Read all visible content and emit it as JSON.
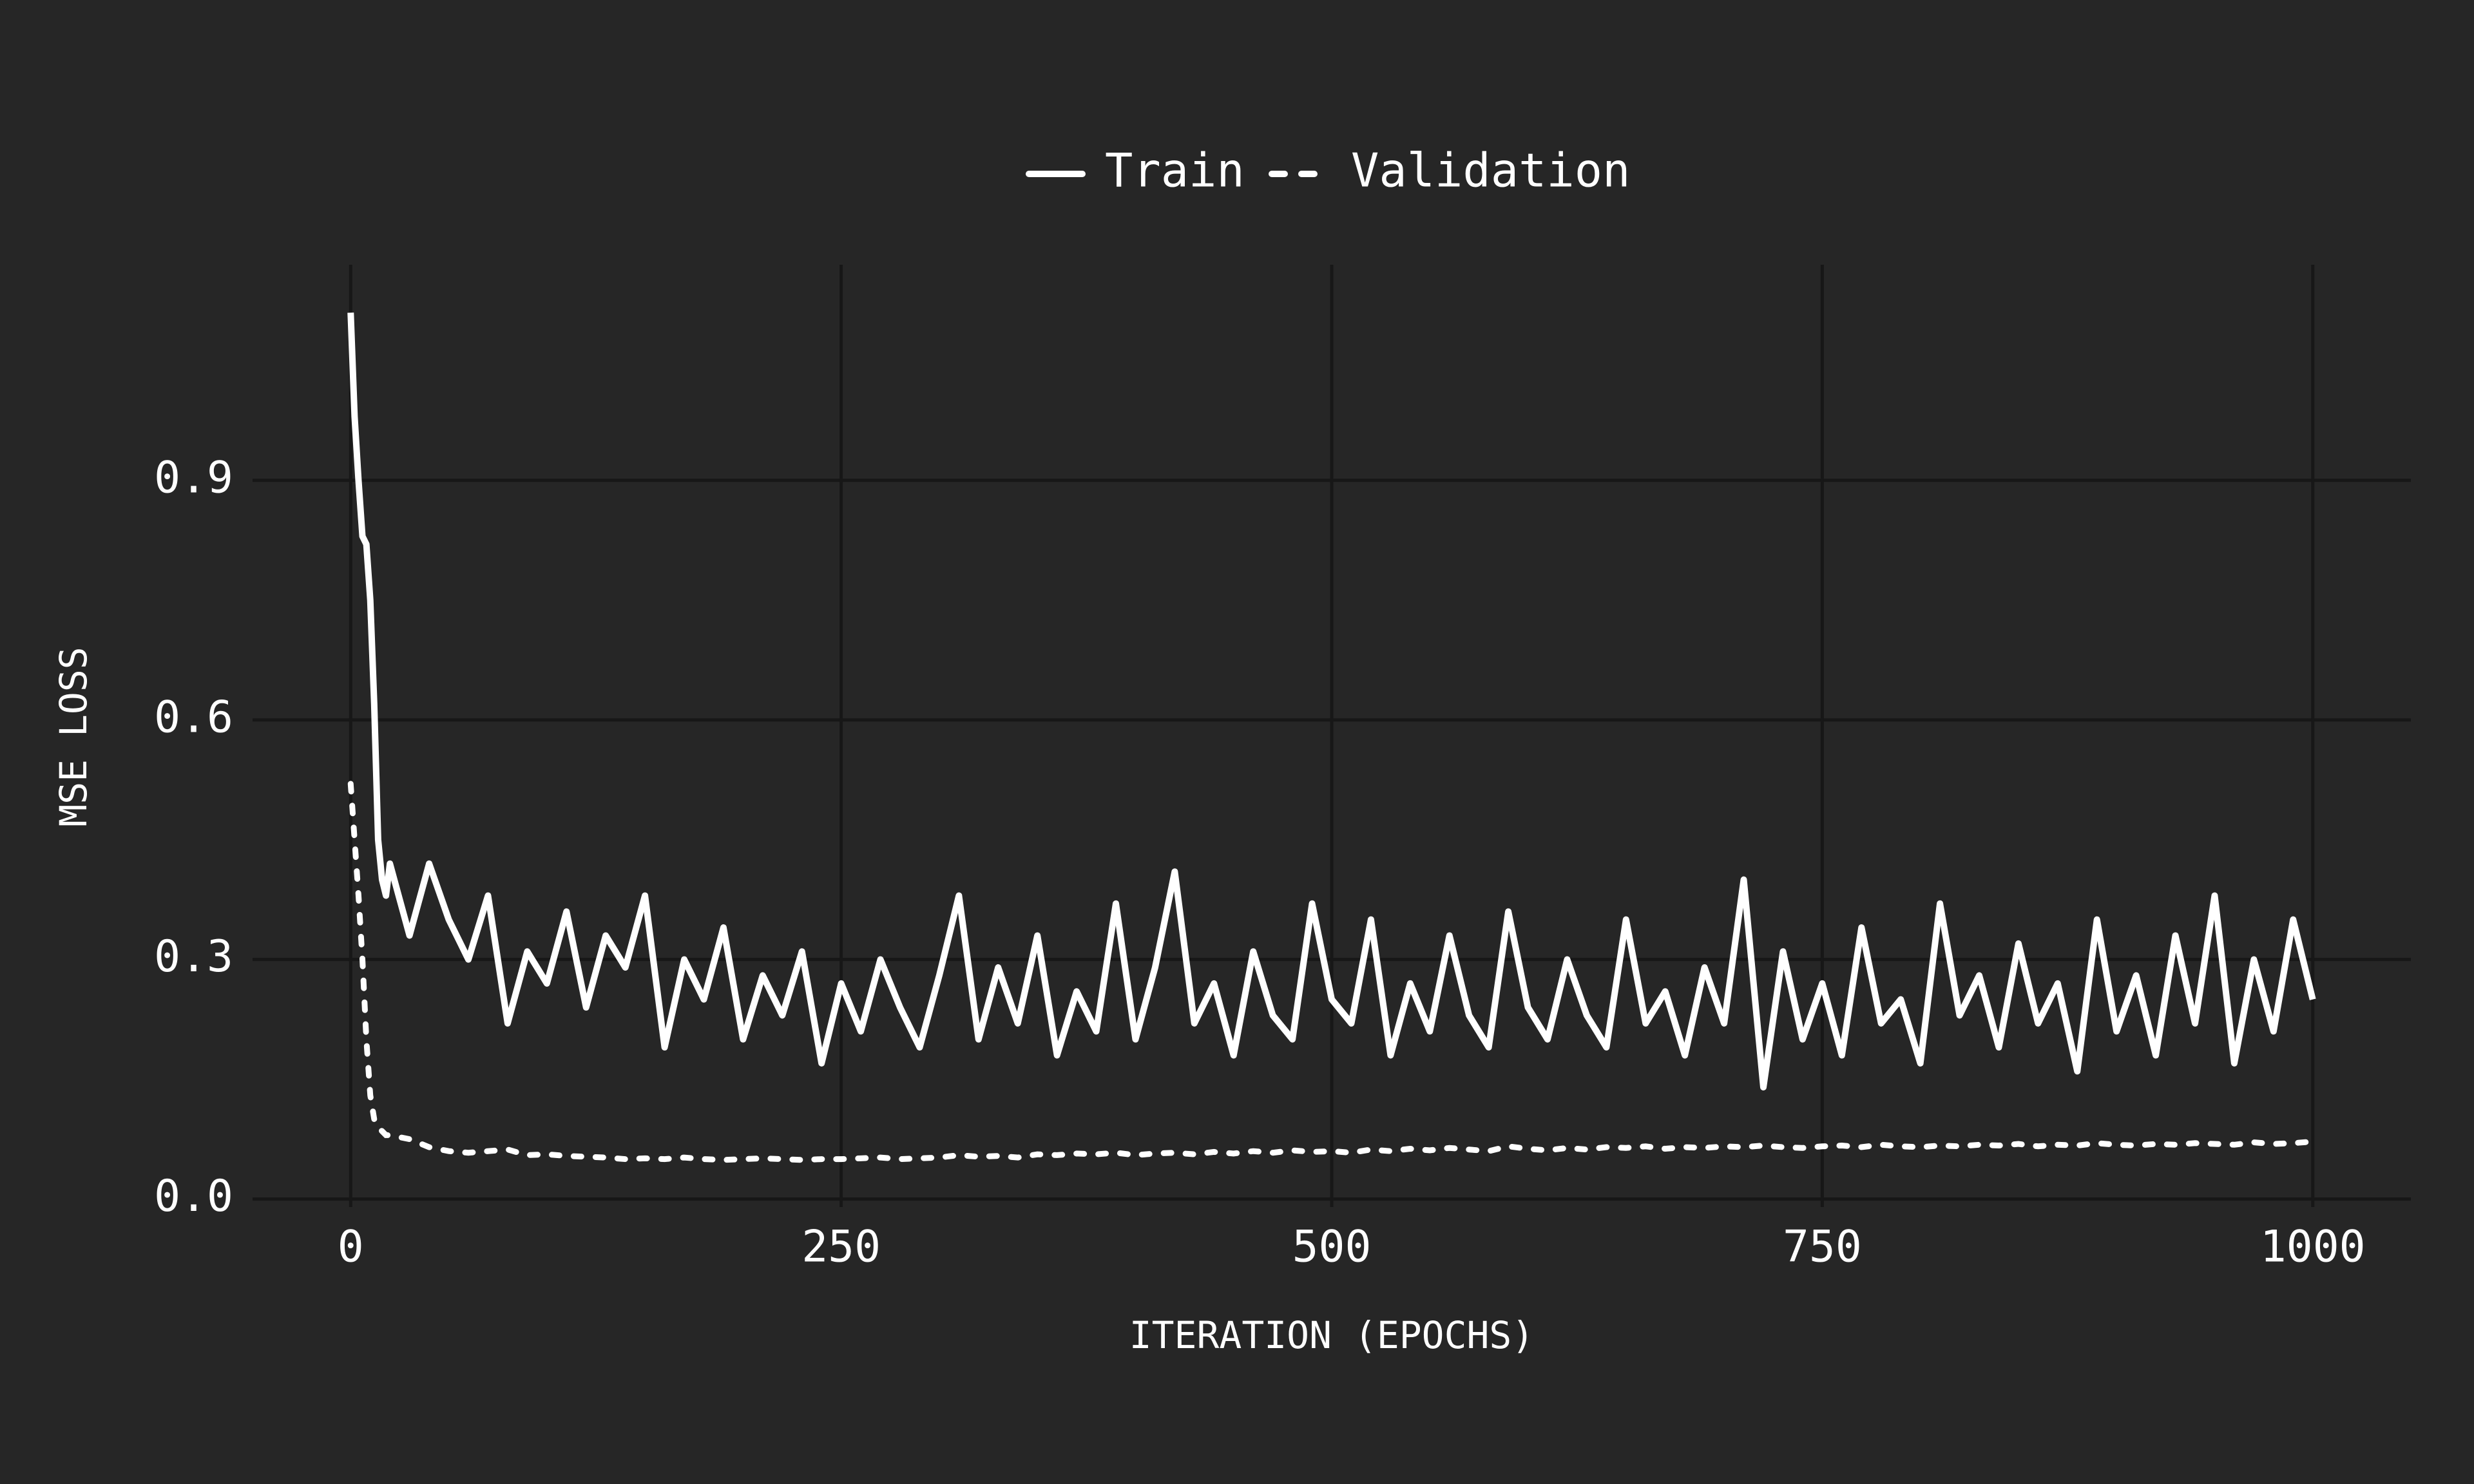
{
  "chart_data": {
    "type": "line",
    "x_label": "ITERATION (EPOCHS)",
    "y_label": "MSE LOSS",
    "x": [
      0,
      2,
      4,
      6,
      8,
      10,
      12,
      14,
      16,
      18,
      20,
      30,
      40,
      50,
      60,
      70,
      80,
      90,
      100,
      110,
      120,
      130,
      140,
      150,
      160,
      170,
      180,
      190,
      200,
      210,
      220,
      230,
      240,
      250,
      260,
      270,
      280,
      290,
      300,
      310,
      320,
      330,
      340,
      350,
      360,
      370,
      380,
      390,
      400,
      410,
      420,
      430,
      440,
      450,
      460,
      470,
      480,
      490,
      500,
      510,
      520,
      530,
      540,
      550,
      560,
      570,
      580,
      590,
      600,
      610,
      620,
      630,
      640,
      650,
      660,
      670,
      680,
      690,
      700,
      710,
      720,
      730,
      740,
      750,
      760,
      770,
      780,
      790,
      800,
      810,
      820,
      830,
      840,
      850,
      860,
      870,
      880,
      890,
      900,
      910,
      920,
      930,
      940,
      950,
      960,
      970,
      980,
      990,
      1000
    ],
    "series": [
      {
        "name": "Train",
        "color": "#ffffff",
        "dash": "solid",
        "values": [
          1.11,
          0.98,
          0.9,
          0.83,
          0.82,
          0.75,
          0.62,
          0.45,
          0.4,
          0.38,
          0.42,
          0.33,
          0.42,
          0.35,
          0.3,
          0.38,
          0.22,
          0.31,
          0.27,
          0.36,
          0.24,
          0.33,
          0.29,
          0.38,
          0.19,
          0.3,
          0.25,
          0.34,
          0.2,
          0.28,
          0.23,
          0.31,
          0.17,
          0.27,
          0.21,
          0.3,
          0.24,
          0.19,
          0.28,
          0.38,
          0.2,
          0.29,
          0.22,
          0.33,
          0.18,
          0.26,
          0.21,
          0.37,
          0.2,
          0.29,
          0.41,
          0.22,
          0.27,
          0.18,
          0.31,
          0.23,
          0.2,
          0.37,
          0.25,
          0.22,
          0.35,
          0.18,
          0.27,
          0.21,
          0.33,
          0.23,
          0.19,
          0.36,
          0.24,
          0.2,
          0.3,
          0.23,
          0.19,
          0.35,
          0.22,
          0.26,
          0.18,
          0.29,
          0.22,
          0.4,
          0.14,
          0.31,
          0.2,
          0.27,
          0.18,
          0.34,
          0.22,
          0.25,
          0.17,
          0.37,
          0.23,
          0.28,
          0.19,
          0.32,
          0.22,
          0.27,
          0.16,
          0.35,
          0.21,
          0.28,
          0.18,
          0.33,
          0.22,
          0.38,
          0.17,
          0.3,
          0.21,
          0.35,
          0.25
        ]
      },
      {
        "name": "Validation",
        "color": "#ffffff",
        "dash": "dashed",
        "values": [
          0.52,
          0.45,
          0.38,
          0.3,
          0.2,
          0.13,
          0.1,
          0.09,
          0.085,
          0.08,
          0.08,
          0.075,
          0.065,
          0.06,
          0.058,
          0.06,
          0.062,
          0.055,
          0.056,
          0.054,
          0.053,
          0.052,
          0.05,
          0.051,
          0.05,
          0.052,
          0.05,
          0.049,
          0.05,
          0.051,
          0.05,
          0.049,
          0.05,
          0.05,
          0.051,
          0.052,
          0.05,
          0.051,
          0.052,
          0.055,
          0.053,
          0.054,
          0.052,
          0.056,
          0.055,
          0.057,
          0.056,
          0.058,
          0.055,
          0.057,
          0.058,
          0.056,
          0.059,
          0.057,
          0.06,
          0.058,
          0.061,
          0.059,
          0.06,
          0.058,
          0.062,
          0.06,
          0.063,
          0.061,
          0.064,
          0.062,
          0.06,
          0.066,
          0.063,
          0.061,
          0.064,
          0.062,
          0.065,
          0.064,
          0.066,
          0.063,
          0.065,
          0.064,
          0.066,
          0.065,
          0.067,
          0.065,
          0.064,
          0.066,
          0.067,
          0.065,
          0.068,
          0.066,
          0.065,
          0.067,
          0.066,
          0.068,
          0.067,
          0.069,
          0.066,
          0.068,
          0.067,
          0.07,
          0.068,
          0.067,
          0.069,
          0.068,
          0.07,
          0.069,
          0.068,
          0.071,
          0.069,
          0.07,
          0.072
        ]
      }
    ],
    "xlim": [
      -50,
      1050
    ],
    "ylim": [
      -0.01,
      1.17
    ],
    "xticks": [
      0,
      250,
      500,
      750,
      1000
    ],
    "yticks": [
      {
        "value": 0,
        "label": "0.0"
      },
      0.3,
      0.6,
      0.9
    ],
    "grid": true,
    "legend": "top"
  }
}
